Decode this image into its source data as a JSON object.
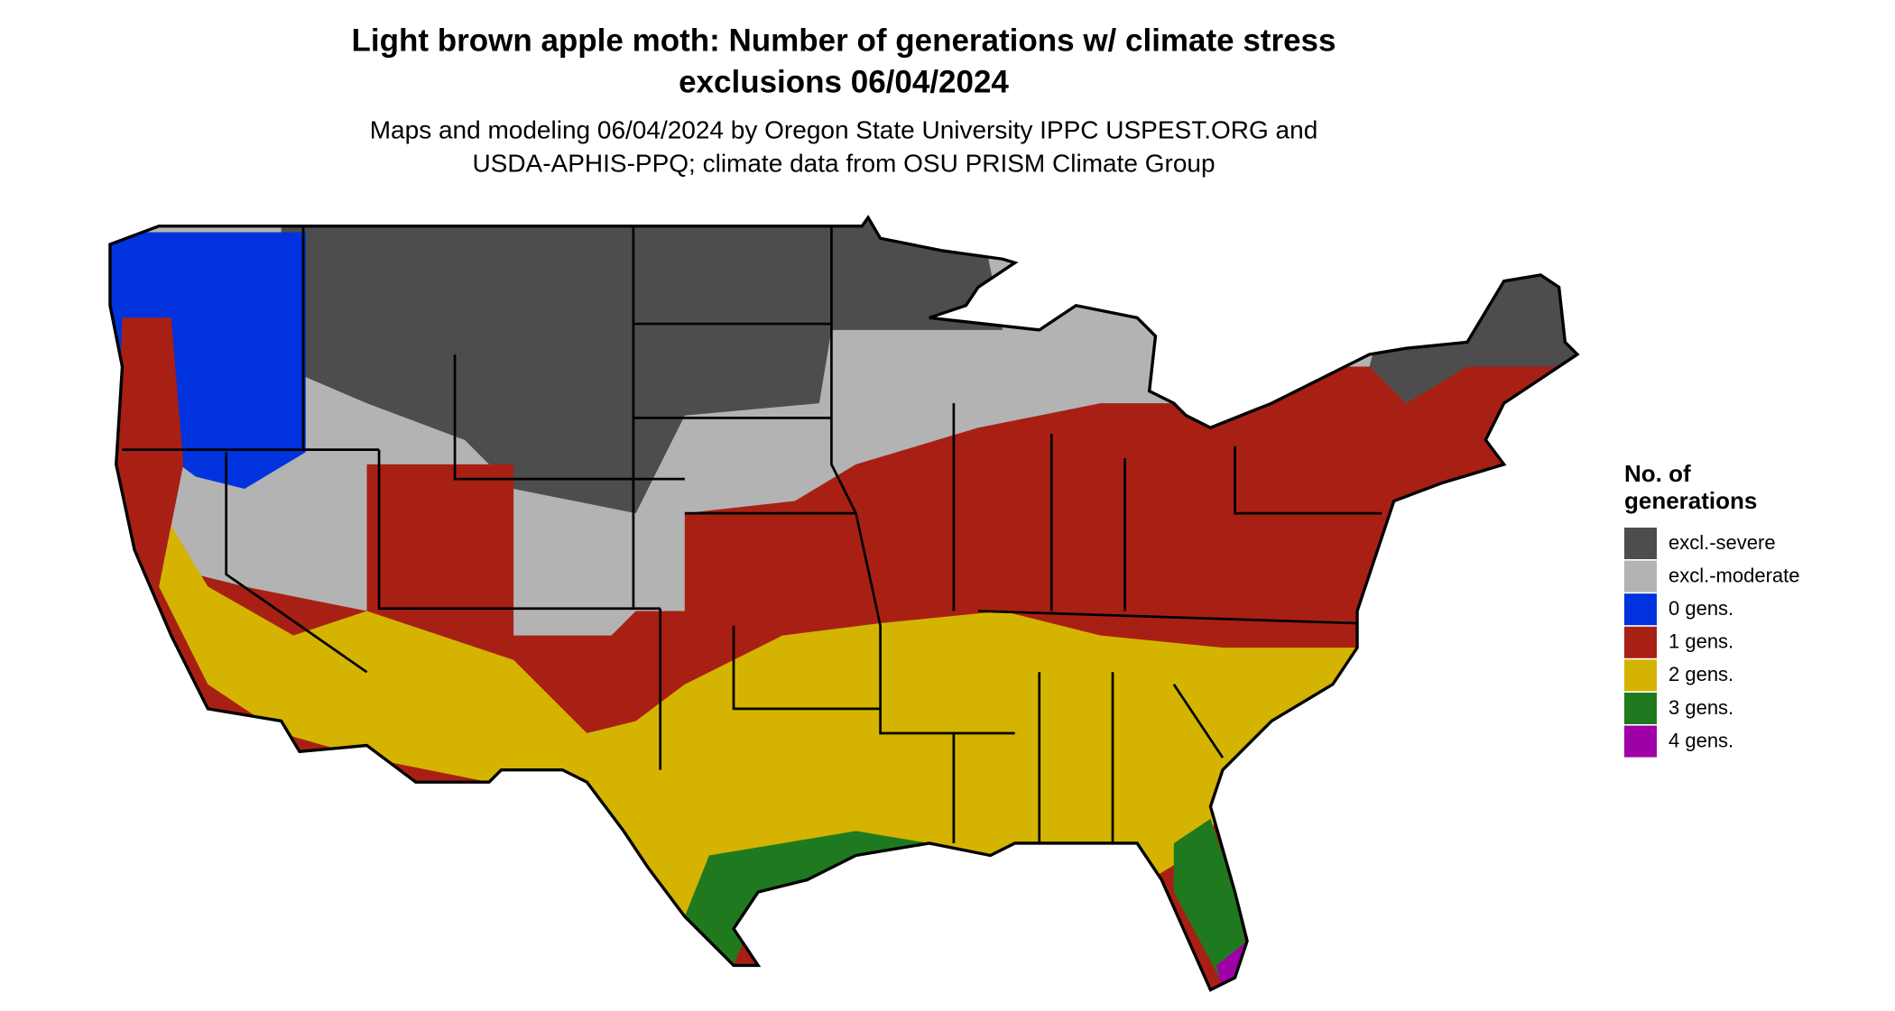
{
  "header": {
    "title_lines": [
      "Light brown apple moth: Number of generations w/ climate stress",
      "exclusions 06/04/2024"
    ],
    "subtitle_lines": [
      "Maps and modeling 06/04/2024 by Oregon State University IPPC USPEST.ORG and",
      "USDA-APHIS-PPQ; climate data from OSU PRISM Climate Group"
    ]
  },
  "legend": {
    "title_lines": [
      "No. of",
      "generations"
    ],
    "items": [
      {
        "label": "excl.-severe",
        "color": "#4d4d4d"
      },
      {
        "label": "excl.-moderate",
        "color": "#b3b3b3"
      },
      {
        "label": "0 gens.",
        "color": "#0033dd"
      },
      {
        "label": "1 gens.",
        "color": "#a82014"
      },
      {
        "label": "2 gens.",
        "color": "#d4b400"
      },
      {
        "label": "3 gens.",
        "color": "#1f7a1f"
      },
      {
        "label": "4 gens.",
        "color": "#a000a8"
      }
    ]
  }
}
